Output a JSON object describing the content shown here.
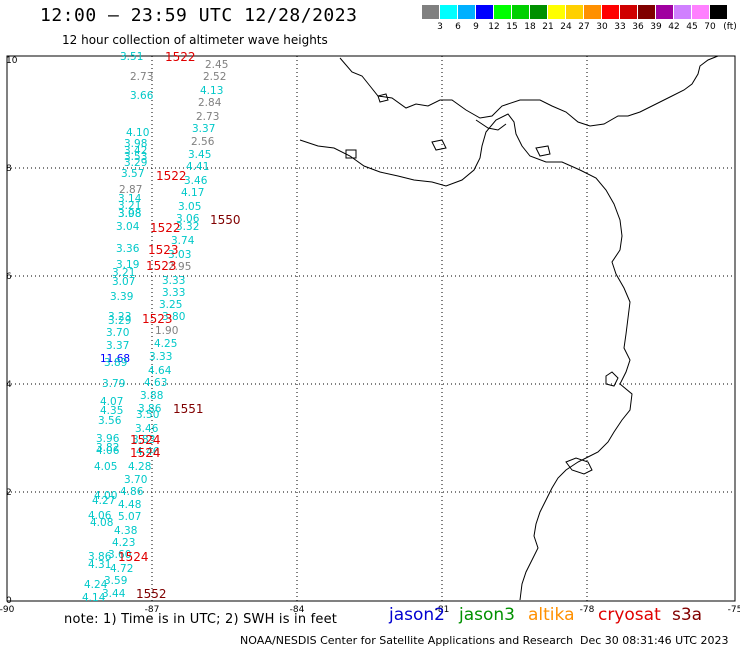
{
  "header": {
    "title": "12:00 – 23:59 UTC 12/28/2023",
    "subtitle": "12 hour collection of altimeter wave heights"
  },
  "legend": {
    "unit": "(ft)",
    "colors": [
      "#808080",
      "#00ffff",
      "#00b0ff",
      "#0000ff",
      "#00ff00",
      "#00d000",
      "#009000",
      "#ffff00",
      "#ffd000",
      "#ff9000",
      "#ff0000",
      "#d00000",
      "#800000",
      "#a000a0",
      "#d080ff",
      "#ff80ff",
      "#000000"
    ],
    "labels": [
      "3",
      "6",
      "9",
      "12",
      "15",
      "18",
      "21",
      "24",
      "27",
      "30",
      "33",
      "36",
      "39",
      "42",
      "45",
      "70"
    ]
  },
  "axes": {
    "x_ticks": [
      "-90",
      "-87",
      "-84",
      "-81",
      "-78",
      "-75"
    ],
    "y_ticks": [
      "0",
      "2",
      "4",
      "6",
      "8",
      "10"
    ]
  },
  "observations": [
    {
      "t": "3.51",
      "c": "#00c8c8"
    },
    {
      "t": "2.45",
      "c": "#808080"
    },
    {
      "t": "2.73",
      "c": "#808080"
    },
    {
      "t": "2.52",
      "c": "#808080"
    },
    {
      "t": "4.13",
      "c": "#00c8c8"
    },
    {
      "t": "3.66",
      "c": "#00c8c8"
    },
    {
      "t": "2.84",
      "c": "#808080"
    },
    {
      "t": "2.73",
      "c": "#808080"
    },
    {
      "t": "3.37",
      "c": "#00c8c8"
    },
    {
      "t": "4.10",
      "c": "#00c8c8"
    },
    {
      "t": "2.56",
      "c": "#808080"
    },
    {
      "t": "3.98",
      "c": "#00c8c8"
    },
    {
      "t": "3.42",
      "c": "#00c8c8"
    },
    {
      "t": "3.45",
      "c": "#00c8c8"
    },
    {
      "t": "3.53",
      "c": "#00c8c8"
    },
    {
      "t": "3.29",
      "c": "#00c8c8"
    },
    {
      "t": "4.41",
      "c": "#00c8c8"
    },
    {
      "t": "3.57",
      "c": "#00c8c8"
    },
    {
      "t": "3.46",
      "c": "#00c8c8"
    },
    {
      "t": "2.87",
      "c": "#808080"
    },
    {
      "t": "4.17",
      "c": "#00c8c8"
    },
    {
      "t": "3.14",
      "c": "#00c8c8"
    },
    {
      "t": "3.21",
      "c": "#00c8c8"
    },
    {
      "t": "3.05",
      "c": "#00c8c8"
    },
    {
      "t": "3.98",
      "c": "#00c8c8"
    },
    {
      "t": "3.08",
      "c": "#00c8c8"
    },
    {
      "t": "3.06",
      "c": "#00c8c8"
    },
    {
      "t": "3.04",
      "c": "#00c8c8"
    },
    {
      "t": "3.32",
      "c": "#00c8c8"
    },
    {
      "t": "3.74",
      "c": "#00c8c8"
    },
    {
      "t": "3.36",
      "c": "#00c8c8"
    },
    {
      "t": "3.03",
      "c": "#00c8c8"
    },
    {
      "t": "3.19",
      "c": "#00c8c8"
    },
    {
      "t": "2.95",
      "c": "#808080"
    },
    {
      "t": "3.21",
      "c": "#00c8c8"
    },
    {
      "t": "3.07",
      "c": "#00c8c8"
    },
    {
      "t": "3.33",
      "c": "#00c8c8"
    },
    {
      "t": "3.33",
      "c": "#00c8c8"
    },
    {
      "t": "3.39",
      "c": "#00c8c8"
    },
    {
      "t": "3.25",
      "c": "#00c8c8"
    },
    {
      "t": "3.23",
      "c": "#00c8c8"
    },
    {
      "t": "3.80",
      "c": "#00c8c8"
    },
    {
      "t": "3.29",
      "c": "#00c8c8"
    },
    {
      "t": "1.90",
      "c": "#808080"
    },
    {
      "t": "3.70",
      "c": "#00c8c8"
    },
    {
      "t": "4.25",
      "c": "#00c8c8"
    },
    {
      "t": "3.37",
      "c": "#00c8c8"
    },
    {
      "t": "3.33",
      "c": "#00c8c8"
    },
    {
      "t": "11.68",
      "c": "#0000ff"
    },
    {
      "t": "3.89",
      "c": "#00c8c8"
    },
    {
      "t": "4.64",
      "c": "#00c8c8"
    },
    {
      "t": "3.79",
      "c": "#00c8c8"
    },
    {
      "t": "4.63",
      "c": "#00c8c8"
    },
    {
      "t": "3.88",
      "c": "#00c8c8"
    },
    {
      "t": "4.07",
      "c": "#00c8c8"
    },
    {
      "t": "3.86",
      "c": "#00c8c8"
    },
    {
      "t": "4.35",
      "c": "#00c8c8"
    },
    {
      "t": "3.50",
      "c": "#00c8c8"
    },
    {
      "t": "3.56",
      "c": "#00c8c8"
    },
    {
      "t": "3.46",
      "c": "#00c8c8"
    },
    {
      "t": "3.96",
      "c": "#00c8c8"
    },
    {
      "t": "3.83",
      "c": "#00c8c8"
    },
    {
      "t": "3.82",
      "c": "#00c8c8"
    },
    {
      "t": "4.06",
      "c": "#00c8c8"
    },
    {
      "t": "4.46",
      "c": "#00c8c8"
    },
    {
      "t": "4.05",
      "c": "#00c8c8"
    },
    {
      "t": "4.28",
      "c": "#00c8c8"
    },
    {
      "t": "3.70",
      "c": "#00c8c8"
    },
    {
      "t": "4.86",
      "c": "#00c8c8"
    },
    {
      "t": "4.00",
      "c": "#00c8c8"
    },
    {
      "t": "4.27",
      "c": "#00c8c8"
    },
    {
      "t": "4.48",
      "c": "#00c8c8"
    },
    {
      "t": "4.06",
      "c": "#00c8c8"
    },
    {
      "t": "5.07",
      "c": "#00c8c8"
    },
    {
      "t": "4.08",
      "c": "#00c8c8"
    },
    {
      "t": "4.38",
      "c": "#00c8c8"
    },
    {
      "t": "4.23",
      "c": "#00c8c8"
    },
    {
      "t": "3.86",
      "c": "#00c8c8"
    },
    {
      "t": "3.60",
      "c": "#00c8c8"
    },
    {
      "t": "4.31",
      "c": "#00c8c8"
    },
    {
      "t": "4.72",
      "c": "#00c8c8"
    },
    {
      "t": "3.59",
      "c": "#00c8c8"
    },
    {
      "t": "4.24",
      "c": "#00c8c8"
    },
    {
      "t": "3.44",
      "c": "#00c8c8"
    },
    {
      "t": "4.14",
      "c": "#00c8c8"
    }
  ],
  "passes": [
    {
      "t": "1522",
      "c": "#e00000"
    },
    {
      "t": "1522",
      "c": "#e00000"
    },
    {
      "t": "1550",
      "c": "#800000"
    },
    {
      "t": "1522",
      "c": "#e00000"
    },
    {
      "t": "1523",
      "c": "#e00000"
    },
    {
      "t": "1523",
      "c": "#e00000"
    },
    {
      "t": "1523",
      "c": "#e00000"
    },
    {
      "t": "1551",
      "c": "#800000"
    },
    {
      "t": "1524",
      "c": "#e00000"
    },
    {
      "t": "1524",
      "c": "#e00000"
    },
    {
      "t": "1524",
      "c": "#e00000"
    },
    {
      "t": "1552",
      "c": "#800000"
    }
  ],
  "notes": {
    "text": "note:  1) Time is in UTC; 2) SWH is in feet"
  },
  "satellites": [
    {
      "name": "jason2",
      "color": "#0000d0"
    },
    {
      "name": "jason3",
      "color": "#009000"
    },
    {
      "name": "altika",
      "color": "#ff9000"
    },
    {
      "name": "cryosat",
      "color": "#e00000"
    },
    {
      "name": "s3a",
      "color": "#800000"
    }
  ],
  "footer": {
    "source": "NOAA/NESDIS Center for Satellite Applications and Research",
    "timestamp": "Dec 30 08:31:46 UTC 2023"
  }
}
